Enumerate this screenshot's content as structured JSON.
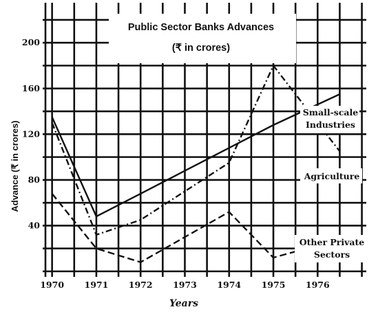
{
  "chart_data": {
    "type": "line",
    "title": "Public Sector Banks Advances",
    "subtitle": "(₹ in crores)",
    "xlabel": "Years",
    "ylabel": "Advance (₹ in crores)",
    "xlim": [
      1969.85,
      1977.1
    ],
    "ylim": [
      0,
      235
    ],
    "x_ticks": [
      1970,
      1971,
      1972,
      1973,
      1974,
      1975,
      1976
    ],
    "y_ticks": [
      40,
      80,
      120,
      160,
      200
    ],
    "grid": true,
    "legend": "inline-right",
    "series": [
      {
        "name": "Small-scale Industries",
        "style": "solid",
        "x": [
          1970,
          1971,
          1972,
          1973,
          1974,
          1975,
          1976.5
        ],
        "y": [
          135,
          48,
          68,
          88,
          108,
          128,
          155
        ]
      },
      {
        "name": "Agriculture",
        "style": "dashdot",
        "x": [
          1970,
          1971,
          1972,
          1974,
          1975,
          1976.5
        ],
        "y": [
          130,
          32,
          45,
          95,
          180,
          105
        ]
      },
      {
        "name": "Other Private Sectors",
        "style": "dashed",
        "x": [
          1970,
          1971,
          1972,
          1974,
          1975,
          1976.5
        ],
        "y": [
          68,
          20,
          8,
          52,
          12,
          28
        ]
      }
    ]
  }
}
